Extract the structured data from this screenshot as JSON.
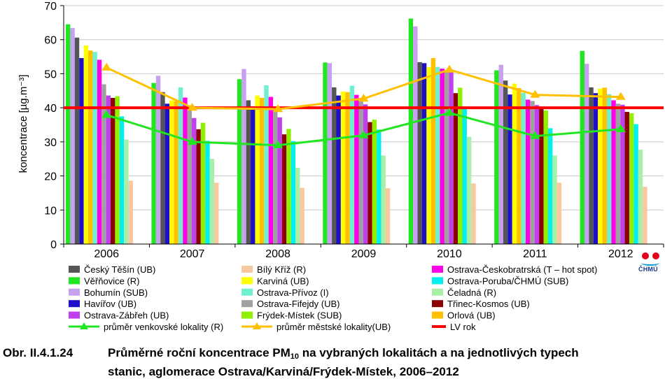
{
  "chart_data": {
    "type": "bar",
    "categories": [
      "2006",
      "2007",
      "2008",
      "2009",
      "2010",
      "2011",
      "2012"
    ],
    "ylabel": "koncentrace [µg.m⁻³]",
    "ylim": [
      0,
      70
    ],
    "yticks": [
      0,
      10,
      20,
      30,
      40,
      50,
      60,
      70
    ],
    "limit_value": 40,
    "limit_label": "LV rok",
    "series": [
      {
        "name": "Věřňovice (R)",
        "color": "#22e622",
        "values": [
          64.5,
          47.3,
          48.4,
          53.3,
          66.2,
          51.0,
          56.7
        ]
      },
      {
        "name": "Bohumín (SUB)",
        "color": "#c8a0f0",
        "values": [
          63.4,
          49.4,
          51.4,
          53.1,
          63.9,
          52.6,
          52.9
        ]
      },
      {
        "name": "Český Těšín (UB)",
        "color": "#555555",
        "values": [
          60.6,
          44.6,
          42.2,
          46.0,
          53.4,
          48.0,
          46.0
        ]
      },
      {
        "name": "Havířov (UB)",
        "color": "#1e10c8",
        "values": [
          54.6,
          41.2,
          40.4,
          43.6,
          53.1,
          43.9,
          44.3
        ]
      },
      {
        "name": "Karviná (UB)",
        "color": "#ffff00",
        "values": [
          58.3,
          42.2,
          43.6,
          44.8,
          51.9,
          47.1,
          45.6
        ]
      },
      {
        "name": "Orlová (UB)",
        "color": "#ffc000",
        "values": [
          56.8,
          41.9,
          42.9,
          44.6,
          54.6,
          45.8,
          45.9
        ]
      },
      {
        "name": "Ostrava-Přívoz (I)",
        "color": "#70f0d0",
        "values": [
          56.4,
          46.0,
          46.6,
          46.5,
          52.0,
          44.4,
          44.0
        ]
      },
      {
        "name": "Ostrava-Českobratrská (T – hot spot)",
        "color": "#ff00e6",
        "values": [
          54.1,
          43.0,
          43.2,
          43.8,
          51.5,
          42.4,
          42.2
        ]
      },
      {
        "name": "Ostrava-Fifejdy (UB)",
        "color": "#a0a0a0",
        "values": [
          46.9,
          39.3,
          39.7,
          42.0,
          50.6,
          42.0,
          41.2
        ]
      },
      {
        "name": "Ostrava-Zábřeh (UB)",
        "color": "#c040f0",
        "values": [
          43.6,
          37.0,
          37.2,
          41.0,
          51.2,
          40.8,
          40.9
        ]
      },
      {
        "name": "Třinec-Kosmos (UB)",
        "color": "#8b0000",
        "values": [
          42.9,
          33.7,
          32.2,
          35.8,
          44.3,
          40.0,
          38.8
        ]
      },
      {
        "name": "Frýdek-Místek (SUB)",
        "color": "#90f000",
        "values": [
          43.4,
          35.6,
          33.8,
          36.5,
          45.9,
          39.2,
          38.4
        ]
      },
      {
        "name": "Ostrava-Poruba/ČHMÚ (SUB)",
        "color": "#00f0f0",
        "values": [
          37.5,
          30.3,
          30.2,
          33.6,
          39.6,
          34.0,
          35.2
        ]
      },
      {
        "name": "Čeladná (R)",
        "color": "#a8f0a8",
        "values": [
          30.7,
          25.0,
          22.4,
          26.0,
          31.5,
          26.0,
          27.7
        ]
      },
      {
        "name": "Bílý Kříž (R)",
        "color": "#f8c8a0",
        "values": [
          18.6,
          18.0,
          16.5,
          16.4,
          17.8,
          18.0,
          16.8
        ]
      }
    ],
    "lines": [
      {
        "name": "průměr venkovské lokality (R)",
        "color": "#22e622",
        "values": [
          37.9,
          30.0,
          29.0,
          31.9,
          38.5,
          31.7,
          33.7
        ]
      },
      {
        "name": "průměr městské lokality(UB)",
        "color": "#ffc000",
        "values": [
          51.8,
          40.0,
          39.6,
          42.7,
          51.2,
          43.8,
          43.2
        ]
      }
    ],
    "legend": {
      "placement": "bottom",
      "columns": [
        [
          {
            "label": "Český Těšín (UB)",
            "color": "#555555",
            "kind": "box"
          },
          {
            "label": "Věřňovice (R)",
            "color": "#22e622",
            "kind": "box"
          },
          {
            "label": "Bohumín (SUB)",
            "color": "#c8a0f0",
            "kind": "box"
          },
          {
            "label": "Havířov (UB)",
            "color": "#1e10c8",
            "kind": "box"
          },
          {
            "label": "Ostrava-Zábřeh (UB)",
            "color": "#c040f0",
            "kind": "box"
          },
          {
            "label": "průměr venkovské lokality (R)",
            "color": "#22e622",
            "kind": "line"
          }
        ],
        [
          {
            "label": "Bílý Kříž (R)",
            "color": "#f8c8a0",
            "kind": "box"
          },
          {
            "label": "Karviná (UB)",
            "color": "#ffff00",
            "kind": "box"
          },
          {
            "label": "Ostrava-Přívoz (I)",
            "color": "#70f0d0",
            "kind": "box"
          },
          {
            "label": "Ostrava-Fifejdy (UB)",
            "color": "#a0a0a0",
            "kind": "box"
          },
          {
            "label": "Frýdek-Místek (SUB)",
            "color": "#90f000",
            "kind": "box"
          },
          {
            "label": "průměr městské lokality(UB)",
            "color": "#ffc000",
            "kind": "line"
          }
        ],
        [
          {
            "label": "Ostrava-Českobratrská (T – hot spot)",
            "color": "#ff00e6",
            "kind": "box"
          },
          {
            "label": "Ostrava-Poruba/ČHMÚ (SUB)",
            "color": "#00f0f0",
            "kind": "box"
          },
          {
            "label": "Čeladná (R)",
            "color": "#a8f0a8",
            "kind": "box"
          },
          {
            "label": "Třinec-Kosmos (UB)",
            "color": "#8b0000",
            "kind": "box"
          },
          {
            "label": "Orlová (UB)",
            "color": "#ffc000",
            "kind": "box"
          },
          {
            "label": "LV rok",
            "color": "#ff0000",
            "kind": "limit"
          }
        ]
      ]
    }
  },
  "logo": {
    "text": "ČHMÚ"
  },
  "caption": {
    "number": "Obr. II.4.1.24",
    "line1_before_sub": "Průměrné roční koncentrace PM",
    "sub": "10",
    "line1_after_sub": " na vybraných lokalitách a na jednotlivých typech",
    "line2": "stanic, aglomerace Ostrava/Karviná/Frýdek-Místek, 2006–2012"
  }
}
